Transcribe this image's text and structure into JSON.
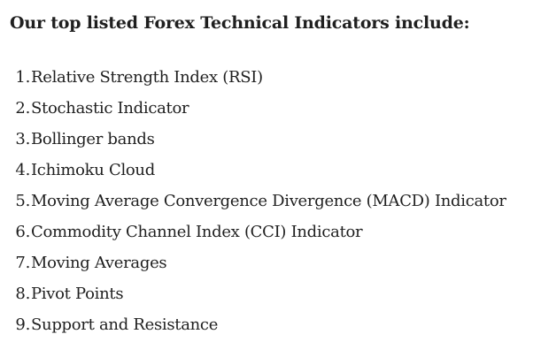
{
  "heading": "Our top listed Forex Technical Indicators include:",
  "items": [
    {
      "num": "1.",
      "text": "Relative Strength Index (RSI)"
    },
    {
      "num": "2.",
      "text": "Stochastic Indicator"
    },
    {
      "num": "3.",
      "text": "Bollinger bands"
    },
    {
      "num": "4.",
      "text": "Ichimoku Cloud"
    },
    {
      "num": "5.",
      "text": "Moving Average Convergence Divergence (MACD) Indicator"
    },
    {
      "num": "6.",
      "text": "Commodity Channel Index (CCI) Indicator"
    },
    {
      "num": "7.",
      "text": "Moving Averages"
    },
    {
      "num": "8.",
      "text": "Pivot Points"
    },
    {
      "num": "9.",
      "text": "Support and Resistance"
    }
  ]
}
